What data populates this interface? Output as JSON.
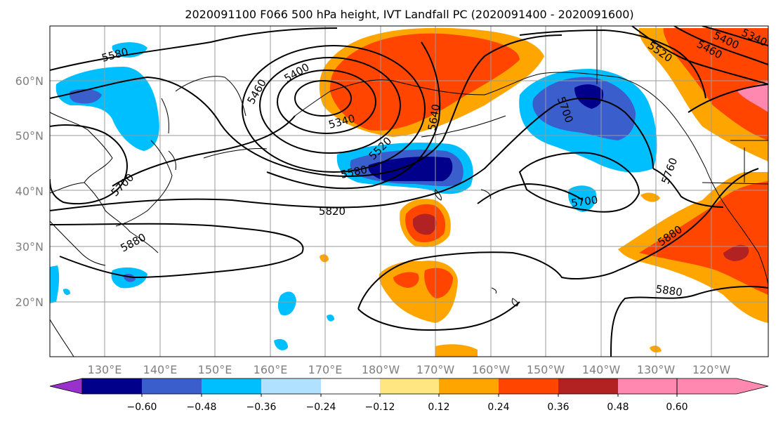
{
  "title": "2020091100 F066 500 hPa height, IVT Landfall PC (2020091400 - 2020091600)",
  "lat_labels": [
    "60°N",
    "50°N",
    "40°N",
    "30°N",
    "20°N"
  ],
  "lon_labels": [
    "130°E",
    "140°E",
    "150°E",
    "160°E",
    "170°E",
    "180°W",
    "170°W",
    "160°W",
    "150°W",
    "140°W",
    "130°W",
    "120°W"
  ],
  "contour_labels": [
    "5580",
    "5400",
    "5460",
    "5340",
    "5640",
    "5520",
    "5580",
    "5700",
    "5700",
    "5760",
    "5700",
    "5820",
    "5880",
    "5880",
    "5880",
    "5520",
    "5460",
    "5400",
    "5340"
  ],
  "colorbar": {
    "ticks": [
      "−0.60",
      "−0.48",
      "−0.36",
      "−0.24",
      "−0.12",
      "0.12",
      "0.24",
      "0.36",
      "0.48",
      "0.60"
    ],
    "colors": [
      "#9932cc",
      "#00008b",
      "#3a5fcd",
      "#00bfff",
      "#b0e2ff",
      "#ffffff",
      "#ffe680",
      "#ffa500",
      "#ff4500",
      "#b22222",
      "#ff88b0"
    ]
  }
}
